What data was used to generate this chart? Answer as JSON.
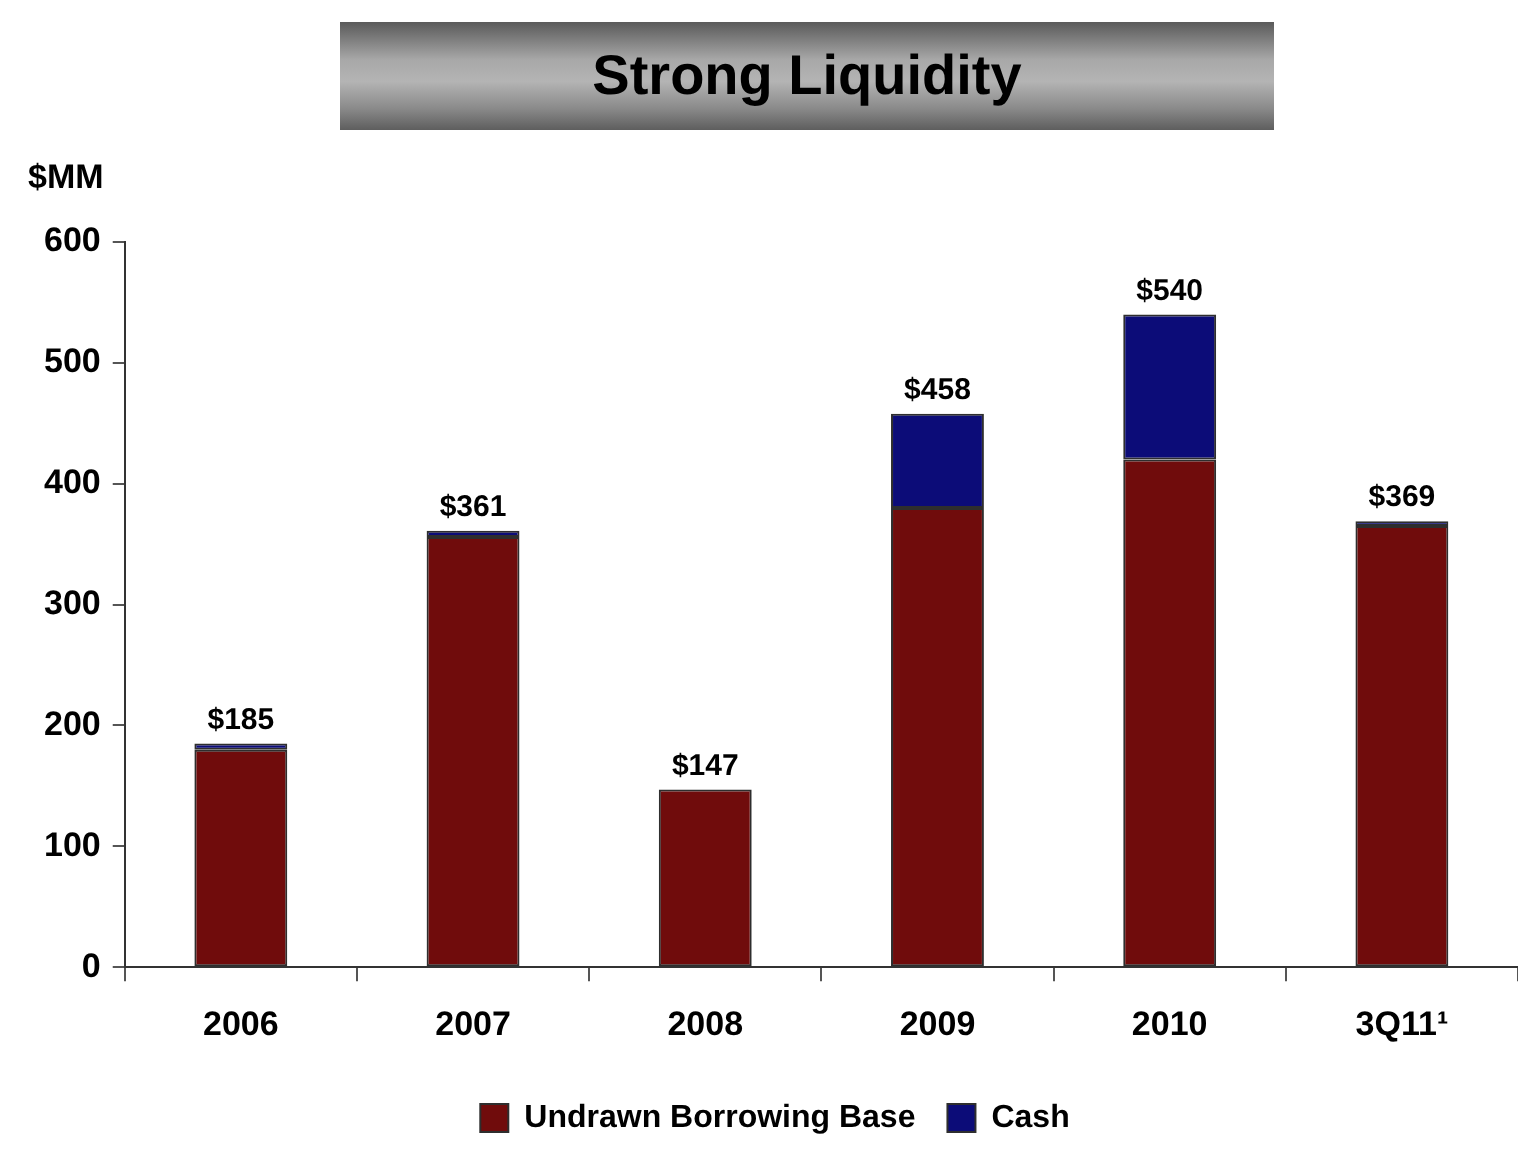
{
  "chart_data": {
    "type": "bar",
    "title": "Strong Liquidity",
    "ylabel": "$MM",
    "categories": [
      "2006",
      "2007",
      "2008",
      "2009",
      "2010",
      "3Q11¹"
    ],
    "series": [
      {
        "name": "Undrawn Borrowing Base",
        "color": "#700c0c",
        "values": [
          180,
          356,
          147,
          380,
          420,
          365
        ]
      },
      {
        "name": "Cash",
        "color": "#0c0c78",
        "values": [
          5,
          5,
          null,
          78,
          120,
          4
        ]
      }
    ],
    "stacked": true,
    "totals": [
      "$185",
      "$361",
      "$147",
      "$458",
      "$540",
      "$369"
    ],
    "ylim": [
      0,
      600
    ],
    "yticks": [
      0,
      100,
      200,
      300,
      400,
      500,
      600
    ],
    "grid": false,
    "legend": "bottom"
  }
}
